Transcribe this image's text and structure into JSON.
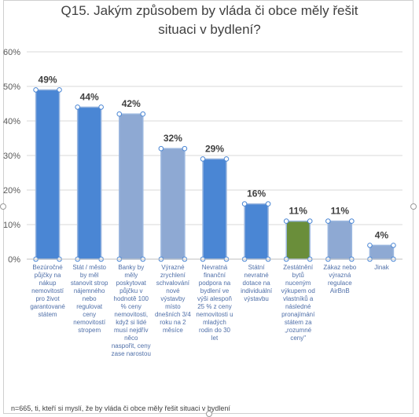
{
  "chart_data": {
    "type": "bar",
    "title": [
      "Q15. Jakým způsobem by vláda či obce měly řešit",
      "situaci v bydlení?"
    ],
    "ylim": [
      0,
      60
    ],
    "yticks": [
      "0%",
      "10%",
      "20%",
      "30%",
      "40%",
      "50%",
      "60%"
    ],
    "grid": true,
    "categories": [
      "Bezúročné\npůjčky na\nnákup\nnemovitostí\npro život\ngarantované\nstátem",
      "Stát / město\nby měl\nstanovit strop\nnájemného\nnebo\nregulovat\nceny\nnemovitostí\nstropem",
      "Banky by\nměly\nposkytovat\npůjčku v\nhodnotě 100\n% ceny\nnemovitosti,\nkdyž si lidé\nmusí nejdřív\nněco\nnaspořit, ceny\nzase narostou",
      "Výrazné\nzrychlení\nschvalování\nnové\nvýstavby\nmísto\ndnešních 3/4\nroku na 2\nměsíce",
      "Nevratná\nfinanční\npodpora na\nbydlení ve\nvýši alespoň\n25 % z ceny\nnemovitosti u\nmladých\nrodin do 30\nlet",
      "Státní\nnevratné\ndotace na\nindividuální\nvýstavbu",
      "Zestátnění\nbytů\nnuceným\nvýkupem od\nvlastníků a\nnásledné\npronajímání\nstátem za\n„rozumné\nceny\"",
      "Zákaz nebo\nvýrazná\nregulace\nAirBnB",
      "Jinak"
    ],
    "values": [
      49,
      44,
      42,
      32,
      29,
      16,
      11,
      11,
      4
    ],
    "value_labels": [
      "49%",
      "44%",
      "42%",
      "32%",
      "29%",
      "16%",
      "11%",
      "11%",
      "4%"
    ],
    "colors": [
      "#4a86d4",
      "#4a86d4",
      "#8ea9d3",
      "#8ea9d3",
      "#4a86d4",
      "#4a86d4",
      "#6a8e3a",
      "#8ea9d3",
      "#8ea9d3"
    ],
    "footnote": "n=665, ti, kteří si myslí, že by vláda či obce měly řešit situaci v bydlení"
  }
}
